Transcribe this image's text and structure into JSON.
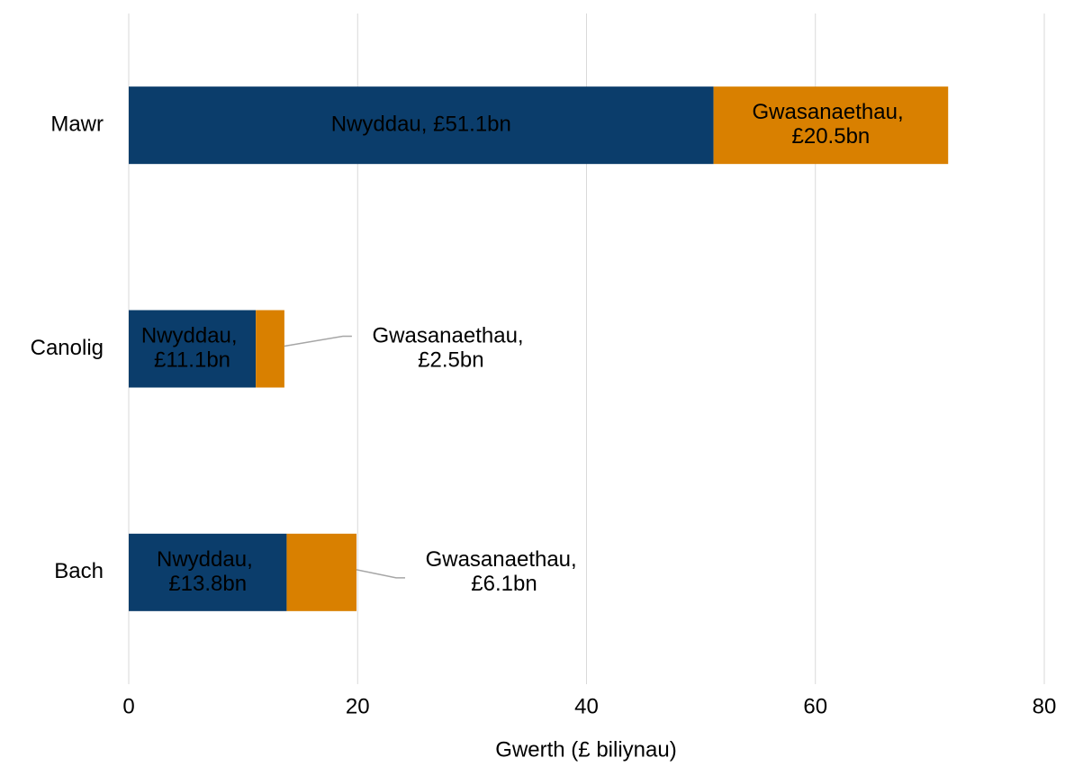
{
  "chart_data": {
    "type": "stacked-bar-horizontal",
    "categories": [
      "Mawr",
      "Canolig",
      "Bach"
    ],
    "series": [
      {
        "color": "#0b3d6b",
        "values": [
          51.1,
          11.1,
          13.8
        ],
        "value_labels": [
          "Nwyddau, £51.1bn",
          "Nwyddau, £11.1bn",
          "Nwyddau, £13.8bn"
        ]
      },
      {
        "color": "#d98000",
        "values": [
          20.5,
          2.5,
          6.1
        ],
        "value_labels": [
          "Gwasanaethau, £20.5bn",
          "Gwasanaethau, £2.5bn",
          "Gwasanaethau, £6.1bn"
        ]
      }
    ],
    "xlabel": "Gwerth (£ biliynau)",
    "xlim": [
      0,
      80
    ],
    "xticks": [
      0,
      20,
      40,
      60,
      80
    ],
    "grid": true
  }
}
